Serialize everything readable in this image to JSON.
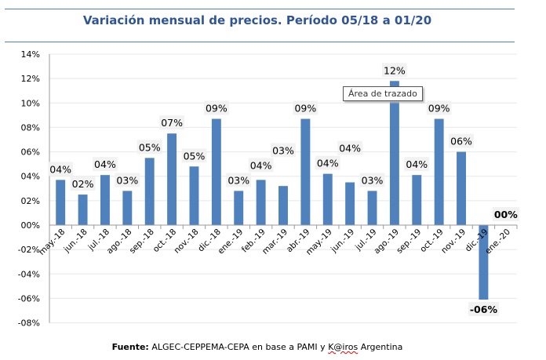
{
  "title": "Variación mensual de precios. Período 05/18 a 01/20",
  "tooltip": "Área de trazado",
  "footer": {
    "label": "Fuente:",
    "text_before": " ALGEC-CEPPEMA-CEPA en base a PAMI y ",
    "underlined": "K@iros",
    "text_after": " Argentina"
  },
  "chart_data": {
    "type": "bar",
    "title": "Variación mensual de precios. Período 05/18 a 01/20",
    "xlabel": "",
    "ylabel": "",
    "ylim": [
      -8,
      14
    ],
    "yticks": [
      -8,
      -6,
      -4,
      -2,
      0,
      2,
      4,
      6,
      8,
      10,
      12,
      14
    ],
    "ytick_labels": [
      "-08%",
      "-06%",
      "-04%",
      "-02%",
      "00%",
      "02%",
      "04%",
      "06%",
      "08%",
      "10%",
      "12%",
      "14%"
    ],
    "grid": true,
    "color": "#4f81bd",
    "categories": [
      "may.-18",
      "jun.-18",
      "jul.-18",
      "ago.-18",
      "sep.-18",
      "oct.-18",
      "nov.-18",
      "dic.-18",
      "ene.-19",
      "feb.-19",
      "mar.-19",
      "abr.-19",
      "may.-19",
      "jun.-19",
      "jul.-19",
      "ago.-19",
      "sep.-19",
      "oct.-19",
      "nov.-19",
      "dic.-19",
      "ene.-20"
    ],
    "values": [
      3.7,
      2.5,
      4.1,
      2.8,
      5.5,
      7.5,
      4.8,
      8.7,
      2.8,
      3.7,
      3.2,
      8.7,
      4.2,
      3.5,
      2.8,
      11.8,
      4.1,
      8.7,
      6.0,
      -6.1,
      0.0
    ],
    "data_labels": [
      "04%",
      "02%",
      "04%",
      "03%",
      "05%",
      "07%",
      "05%",
      "09%",
      "03%",
      "04%",
      "03%",
      "09%",
      "04%",
      "04%",
      "03%",
      "12%",
      "04%",
      "09%",
      "06%",
      "-06%",
      "00%"
    ],
    "bold_labels": [
      19,
      20
    ]
  }
}
